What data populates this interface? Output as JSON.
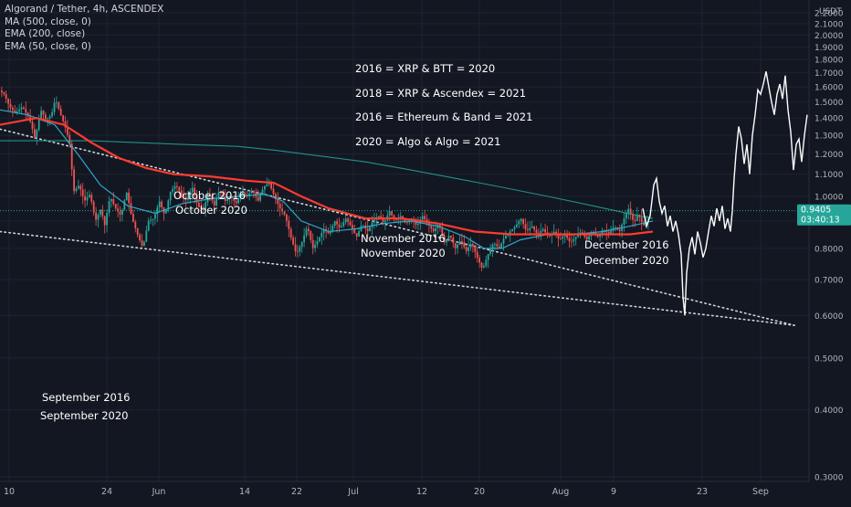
{
  "legend": {
    "symbol": "Algorand / Tether, 4h, ASCENDEX",
    "ma500": "MA (500, close, 0)",
    "ema200": "EMA (200, close)",
    "ema50": "EMA (50, close, 0)"
  },
  "price_axis": {
    "unit": "USDT"
  },
  "last_price": {
    "value": "0.9405",
    "countdown": "03:40:13",
    "color": "#26a69a"
  },
  "colors": {
    "background": "#131722",
    "grid": "#1f2330",
    "candle_up": "#26a69a",
    "candle_down": "#ef5350",
    "ma500": "#ff3b30",
    "ema200": "#26a69a",
    "ema50": "#2fa8c9",
    "projection": "#ffffff",
    "text": "#ffffff",
    "axis_text": "#b2b5be"
  },
  "chart_data": {
    "type": "line",
    "title": "",
    "xlabel": "",
    "ylabel": "USDT",
    "ylim": [
      0.3,
      2.2
    ],
    "x_tick_labels": [
      "10",
      "24",
      "Jun",
      "14",
      "22",
      "Jul",
      "12",
      "20",
      "Aug",
      "9",
      "23",
      "Sep"
    ],
    "y_tick_labels": [
      "0.3000",
      "0.4000",
      "0.5000",
      "0.6000",
      "0.7000",
      "0.8000",
      "0.9000",
      "1.0000",
      "1.1000",
      "1.2000",
      "1.3000",
      "1.4000",
      "1.5000",
      "1.6000",
      "1.7000",
      "1.8000",
      "1.9000",
      "2.0000",
      "2.1000",
      "2.2000"
    ],
    "y_ticks": [
      0.3,
      0.4,
      0.5,
      0.6,
      0.7,
      0.8,
      0.9,
      1.0,
      1.1,
      1.2,
      1.3,
      1.4,
      1.5,
      1.6,
      1.7,
      1.8,
      1.9,
      2.0,
      2.1,
      2.2
    ],
    "grid": true,
    "series": [
      {
        "values": [
          [
            0,
            1.58
          ],
          [
            6,
            1.55
          ],
          [
            12,
            1.47
          ],
          [
            18,
            1.43
          ],
          [
            26,
            1.47
          ],
          [
            34,
            1.39
          ],
          [
            40,
            1.28
          ],
          [
            46,
            1.45
          ],
          [
            52,
            1.39
          ],
          [
            58,
            1.42
          ],
          [
            62,
            1.52
          ],
          [
            68,
            1.42
          ],
          [
            74,
            1.33
          ],
          [
            78,
            1.25
          ],
          [
            82,
            1.02
          ],
          [
            88,
            1.05
          ],
          [
            94,
            0.98
          ],
          [
            100,
            1.01
          ],
          [
            106,
            0.9
          ],
          [
            112,
            0.95
          ],
          [
            116,
            0.88
          ],
          [
            122,
            1.0
          ],
          [
            128,
            0.95
          ],
          [
            134,
            0.92
          ],
          [
            140,
            1.02
          ],
          [
            146,
            0.91
          ],
          [
            152,
            0.85
          ],
          [
            158,
            0.8
          ],
          [
            164,
            0.9
          ],
          [
            170,
            0.91
          ],
          [
            176,
            0.98
          ],
          [
            182,
            0.92
          ],
          [
            188,
            1.02
          ],
          [
            194,
            1.05
          ],
          [
            200,
            1.01
          ],
          [
            206,
            0.98
          ],
          [
            212,
            1.04
          ],
          [
            218,
            0.96
          ],
          [
            224,
            0.94
          ],
          [
            230,
            1.02
          ],
          [
            236,
            0.96
          ],
          [
            242,
            1.03
          ],
          [
            248,
            0.98
          ],
          [
            254,
            1.0
          ],
          [
            260,
            0.97
          ],
          [
            266,
            1.02
          ],
          [
            272,
            1.0
          ],
          [
            278,
            1.03
          ],
          [
            284,
            0.98
          ],
          [
            290,
            1.04
          ],
          [
            296,
            1.06
          ],
          [
            302,
            1.0
          ],
          [
            308,
            0.95
          ],
          [
            314,
            0.92
          ],
          [
            320,
            0.84
          ],
          [
            326,
            0.78
          ],
          [
            332,
            0.82
          ],
          [
            338,
            0.88
          ],
          [
            344,
            0.8
          ],
          [
            350,
            0.83
          ],
          [
            356,
            0.87
          ],
          [
            362,
            0.85
          ],
          [
            368,
            0.9
          ],
          [
            374,
            0.87
          ],
          [
            380,
            0.91
          ],
          [
            386,
            0.88
          ],
          [
            392,
            0.84
          ],
          [
            398,
            0.89
          ],
          [
            404,
            0.86
          ],
          [
            410,
            0.9
          ],
          [
            416,
            0.92
          ],
          [
            422,
            0.89
          ],
          [
            428,
            0.94
          ],
          [
            434,
            0.9
          ],
          [
            440,
            0.92
          ],
          [
            446,
            0.89
          ],
          [
            452,
            0.91
          ],
          [
            458,
            0.88
          ],
          [
            464,
            0.92
          ],
          [
            470,
            0.89
          ],
          [
            476,
            0.86
          ],
          [
            482,
            0.89
          ],
          [
            488,
            0.82
          ],
          [
            494,
            0.85
          ],
          [
            500,
            0.8
          ],
          [
            506,
            0.83
          ],
          [
            512,
            0.79
          ],
          [
            518,
            0.82
          ],
          [
            524,
            0.77
          ],
          [
            530,
            0.73
          ],
          [
            536,
            0.78
          ],
          [
            542,
            0.82
          ],
          [
            548,
            0.8
          ],
          [
            554,
            0.84
          ],
          [
            560,
            0.86
          ],
          [
            566,
            0.88
          ],
          [
            572,
            0.91
          ],
          [
            578,
            0.86
          ],
          [
            584,
            0.88
          ],
          [
            590,
            0.85
          ],
          [
            596,
            0.87
          ],
          [
            602,
            0.84
          ],
          [
            608,
            0.86
          ],
          [
            614,
            0.83
          ],
          [
            620,
            0.85
          ],
          [
            626,
            0.82
          ],
          [
            632,
            0.84
          ],
          [
            638,
            0.86
          ],
          [
            644,
            0.83
          ],
          [
            650,
            0.86
          ],
          [
            656,
            0.84
          ],
          [
            662,
            0.87
          ],
          [
            668,
            0.85
          ],
          [
            674,
            0.88
          ],
          [
            680,
            0.86
          ],
          [
            686,
            0.92
          ],
          [
            690,
            0.95
          ],
          [
            696,
            0.89
          ],
          [
            700,
            0.93
          ],
          [
            706,
            0.88
          ],
          [
            710,
            0.9
          ]
        ]
      },
      {
        "values": [
          [
            0,
            1.36
          ],
          [
            40,
            1.4
          ],
          [
            70,
            1.36
          ],
          [
            85,
            1.31
          ],
          [
            100,
            1.26
          ],
          [
            130,
            1.18
          ],
          [
            160,
            1.13
          ],
          [
            190,
            1.1
          ],
          [
            230,
            1.09
          ],
          [
            270,
            1.07
          ],
          [
            300,
            1.06
          ],
          [
            330,
            1.0
          ],
          [
            360,
            0.95
          ],
          [
            400,
            0.91
          ],
          [
            440,
            0.91
          ],
          [
            480,
            0.89
          ],
          [
            520,
            0.86
          ],
          [
            560,
            0.85
          ],
          [
            600,
            0.85
          ],
          [
            650,
            0.85
          ],
          [
            690,
            0.85
          ],
          [
            715,
            0.86
          ]
        ]
      },
      {
        "values": [
          [
            0,
            1.27
          ],
          [
            50,
            1.27
          ],
          [
            100,
            1.27
          ],
          [
            150,
            1.26
          ],
          [
            200,
            1.25
          ],
          [
            260,
            1.24
          ],
          [
            300,
            1.22
          ],
          [
            350,
            1.19
          ],
          [
            400,
            1.16
          ],
          [
            450,
            1.12
          ],
          [
            500,
            1.08
          ],
          [
            550,
            1.04
          ],
          [
            600,
            1.0
          ],
          [
            650,
            0.96
          ],
          [
            700,
            0.92
          ],
          [
            715,
            0.91
          ]
        ]
      },
      {
        "values": [
          [
            0,
            1.45
          ],
          [
            30,
            1.42
          ],
          [
            60,
            1.36
          ],
          [
            85,
            1.2
          ],
          [
            110,
            1.05
          ],
          [
            140,
            0.96
          ],
          [
            170,
            0.93
          ],
          [
            200,
            0.97
          ],
          [
            230,
            0.99
          ],
          [
            260,
            1.0
          ],
          [
            290,
            1.01
          ],
          [
            310,
            0.98
          ],
          [
            330,
            0.9
          ],
          [
            360,
            0.86
          ],
          [
            390,
            0.87
          ],
          [
            420,
            0.89
          ],
          [
            450,
            0.9
          ],
          [
            480,
            0.88
          ],
          [
            510,
            0.84
          ],
          [
            530,
            0.8
          ],
          [
            550,
            0.8
          ],
          [
            570,
            0.83
          ],
          [
            600,
            0.85
          ],
          [
            630,
            0.85
          ],
          [
            660,
            0.86
          ],
          [
            690,
            0.88
          ],
          [
            715,
            0.9
          ]
        ]
      },
      {
        "values": [
          [
            704,
            0.95
          ],
          [
            708,
            0.88
          ],
          [
            712,
            0.92
          ],
          [
            716,
            1.05
          ],
          [
            719,
            1.08
          ],
          [
            722,
            0.98
          ],
          [
            725,
            0.93
          ],
          [
            728,
            0.96
          ],
          [
            731,
            0.88
          ],
          [
            734,
            0.92
          ],
          [
            737,
            0.86
          ],
          [
            740,
            0.9
          ],
          [
            743,
            0.85
          ],
          [
            746,
            0.78
          ],
          [
            748,
            0.65
          ],
          [
            750,
            0.6
          ],
          [
            752,
            0.72
          ],
          [
            755,
            0.8
          ],
          [
            758,
            0.84
          ],
          [
            761,
            0.78
          ],
          [
            764,
            0.86
          ],
          [
            767,
            0.82
          ],
          [
            770,
            0.77
          ],
          [
            773,
            0.8
          ],
          [
            776,
            0.86
          ],
          [
            779,
            0.92
          ],
          [
            782,
            0.88
          ],
          [
            785,
            0.95
          ],
          [
            788,
            0.9
          ],
          [
            791,
            0.96
          ],
          [
            794,
            0.87
          ],
          [
            797,
            0.91
          ],
          [
            800,
            0.86
          ],
          [
            802,
            0.94
          ],
          [
            804,
            1.08
          ],
          [
            806,
            1.2
          ],
          [
            809,
            1.35
          ],
          [
            812,
            1.28
          ],
          [
            815,
            1.15
          ],
          [
            818,
            1.25
          ],
          [
            821,
            1.1
          ],
          [
            824,
            1.3
          ],
          [
            827,
            1.42
          ],
          [
            830,
            1.58
          ],
          [
            833,
            1.55
          ],
          [
            836,
            1.62
          ],
          [
            839,
            1.71
          ],
          [
            842,
            1.6
          ],
          [
            845,
            1.5
          ],
          [
            848,
            1.42
          ],
          [
            851,
            1.55
          ],
          [
            854,
            1.62
          ],
          [
            857,
            1.52
          ],
          [
            860,
            1.68
          ],
          [
            863,
            1.45
          ],
          [
            866,
            1.32
          ],
          [
            869,
            1.12
          ],
          [
            872,
            1.25
          ],
          [
            875,
            1.28
          ],
          [
            878,
            1.16
          ],
          [
            881,
            1.3
          ],
          [
            884,
            1.42
          ]
        ]
      }
    ],
    "trendlines": [
      {
        "style": "dotted",
        "from": [
          0,
          1.335
        ],
        "to": [
          870,
          0.575
        ]
      },
      {
        "style": "dotted",
        "from": [
          0,
          0.86
        ],
        "to": [
          870,
          0.575
        ]
      }
    ],
    "annotations": [
      {
        "text": "2016 = XRP & BTT = 2020"
      },
      {
        "text": "2018 = XRP & Ascendex = 2021"
      },
      {
        "text": "2016 = Ethereum & Band = 2021"
      },
      {
        "text": "2020 = Algo & Algo = 2021"
      },
      {
        "text": "October 2016"
      },
      {
        "text": "October 2020"
      },
      {
        "text": "November 2016"
      },
      {
        "text": "November 2020"
      },
      {
        "text": "December 2016"
      },
      {
        "text": "December 2020"
      },
      {
        "text": "September 2016"
      },
      {
        "text": "September 2020"
      }
    ],
    "legend_position": "top-left"
  }
}
